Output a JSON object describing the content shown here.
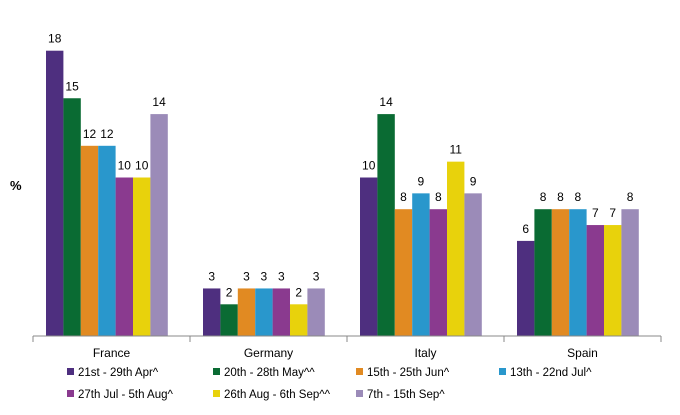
{
  "chart_data": {
    "type": "bar",
    "ylabel": "%",
    "ylim": [
      0,
      20
    ],
    "grid": false,
    "legend_placement": "bottom",
    "categories": [
      "France",
      "Germany",
      "Italy",
      "Spain"
    ],
    "series": [
      {
        "name": "21st - 29th Apr^",
        "color": "#4e2f7f",
        "values": [
          18,
          3,
          10,
          6
        ]
      },
      {
        "name": "20th - 28th May^^",
        "color": "#0a6b33",
        "values": [
          15,
          2,
          14,
          8
        ]
      },
      {
        "name": "15th - 25th Jun^",
        "color": "#e18a22",
        "values": [
          12,
          3,
          8,
          8
        ]
      },
      {
        "name": "13th - 22nd Jul^",
        "color": "#2997cc",
        "values": [
          12,
          3,
          9,
          8
        ]
      },
      {
        "name": "27th Jul - 5th Aug^",
        "color": "#8a3a8f",
        "values": [
          10,
          3,
          8,
          7
        ]
      },
      {
        "name": "26th Aug - 6th Sep^^",
        "color": "#e8d20c",
        "values": [
          10,
          2,
          11,
          7
        ]
      },
      {
        "name": "7th - 15th Sep^",
        "color": "#9b8bb8",
        "values": [
          14,
          3,
          9,
          8
        ]
      }
    ]
  }
}
